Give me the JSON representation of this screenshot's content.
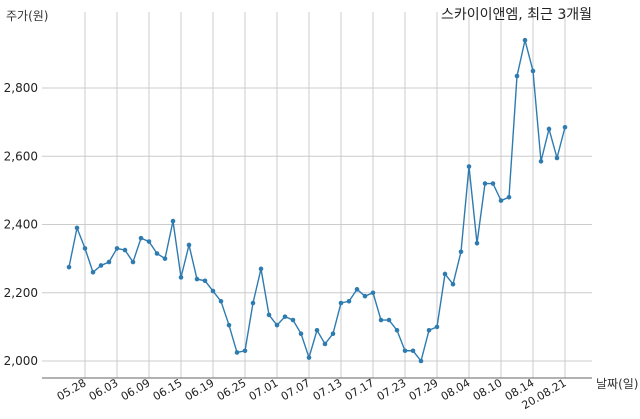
{
  "chart_data": {
    "type": "line",
    "title": "스카이이앤엠, 최근 3개월",
    "ylabel": "주가(원)",
    "xlabel": "날짜(일)",
    "ylim": [
      1950,
      3000
    ],
    "yticks": [
      2000,
      2200,
      2400,
      2600,
      2800
    ],
    "ytick_labels": [
      "2,000",
      "2,200",
      "2,400",
      "2,600",
      "2,800"
    ],
    "xtick_labels": [
      "05.28",
      "06.03",
      "06.09",
      "06.15",
      "06.19",
      "06.25",
      "07.01",
      "07.07",
      "07.13",
      "07.17",
      "07.23",
      "07.29",
      "08.04",
      "08.10",
      "08.14",
      "20.08.21"
    ],
    "xtick_index": [
      2,
      6,
      10,
      14,
      18,
      22,
      26,
      30,
      34,
      38,
      42,
      46,
      50,
      54,
      58,
      62
    ],
    "grid": true,
    "color": "#2e7bb0",
    "series": [
      {
        "values": [
          2275,
          2390,
          2330,
          2260,
          2280,
          2290,
          2330,
          2325,
          2290,
          2360,
          2350,
          2315,
          2300,
          2410,
          2245,
          2340,
          2240,
          2235,
          2205,
          2175,
          2105,
          2025,
          2030,
          2170,
          2270,
          2135,
          2105,
          2130,
          2120,
          2080,
          2010,
          2090,
          2050,
          2080,
          2170,
          2175,
          2210,
          2190,
          2200,
          2120,
          2120,
          2090,
          2030,
          2030,
          2000,
          2090,
          2100,
          2255,
          2225,
          2320,
          2570,
          2345,
          2520,
          2520,
          2470,
          2480,
          2835,
          2940,
          2850,
          2585,
          2680,
          2595,
          2685
        ]
      }
    ]
  }
}
